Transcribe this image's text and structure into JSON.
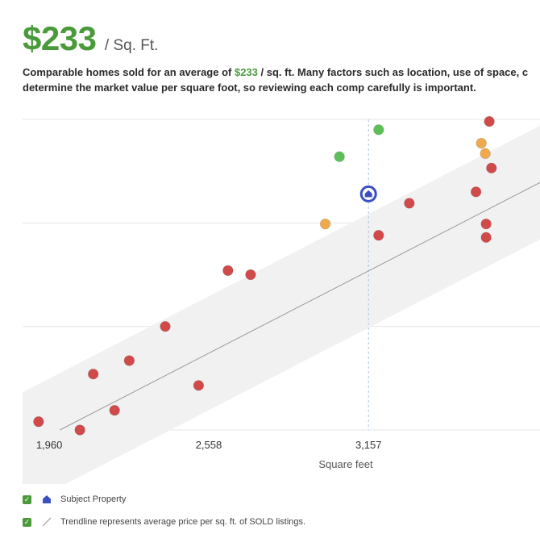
{
  "header": {
    "price": "$233",
    "unit": "/ Sq. Ft."
  },
  "description": {
    "before": "Comparable homes sold for an average of ",
    "highlight": "$233",
    "after_line1": " / sq. ft. Many factors such as location, use of space, c",
    "line2": "determine the market value per square foot, so reviewing each comp carefully is important."
  },
  "legend": {
    "subject_property": "Subject Property",
    "trendline": "Trendline represents average price per sq. ft. of SOLD listings."
  },
  "colors": {
    "sold": "#d14a4a",
    "green": "#5dbf5a",
    "orange": "#eeaa4c",
    "subject": "#3a4fc2",
    "accent": "#4a9a3c"
  },
  "chart_data": {
    "type": "scatter",
    "xlabel": "Square feet",
    "xticks": [
      1960,
      2558,
      3157
    ],
    "xtick_labels": [
      "1,960",
      "2,558",
      "3,157"
    ],
    "xlim": [
      1860,
      3800
    ],
    "ylim": [
      0,
      3
    ],
    "subject_property": {
      "x": 3157,
      "y": 2.28
    },
    "trendline": {
      "x": [
        2000,
        3800
      ],
      "y": [
        0.0,
        2.39
      ]
    },
    "series": [
      {
        "color_key": "sold",
        "points": [
          {
            "x": 1920,
            "y": 0.08
          },
          {
            "x": 2075,
            "y": 0.0
          },
          {
            "x": 2125,
            "y": 0.54
          },
          {
            "x": 2205,
            "y": 0.19
          },
          {
            "x": 2260,
            "y": 0.67
          },
          {
            "x": 2395,
            "y": 1.0
          },
          {
            "x": 2520,
            "y": 0.43
          },
          {
            "x": 2630,
            "y": 1.54
          },
          {
            "x": 2715,
            "y": 1.5
          },
          {
            "x": 3195,
            "y": 1.88
          },
          {
            "x": 3310,
            "y": 2.19
          },
          {
            "x": 3560,
            "y": 2.3
          },
          {
            "x": 3610,
            "y": 2.98
          },
          {
            "x": 3618,
            "y": 2.53
          },
          {
            "x": 3598,
            "y": 1.99
          },
          {
            "x": 3598,
            "y": 1.86
          }
        ]
      },
      {
        "color_key": "green",
        "points": [
          {
            "x": 3048,
            "y": 2.64
          },
          {
            "x": 3195,
            "y": 2.9
          }
        ]
      },
      {
        "color_key": "orange",
        "points": [
          {
            "x": 2995,
            "y": 1.99
          },
          {
            "x": 3580,
            "y": 2.77
          },
          {
            "x": 3595,
            "y": 2.67
          }
        ]
      }
    ]
  }
}
